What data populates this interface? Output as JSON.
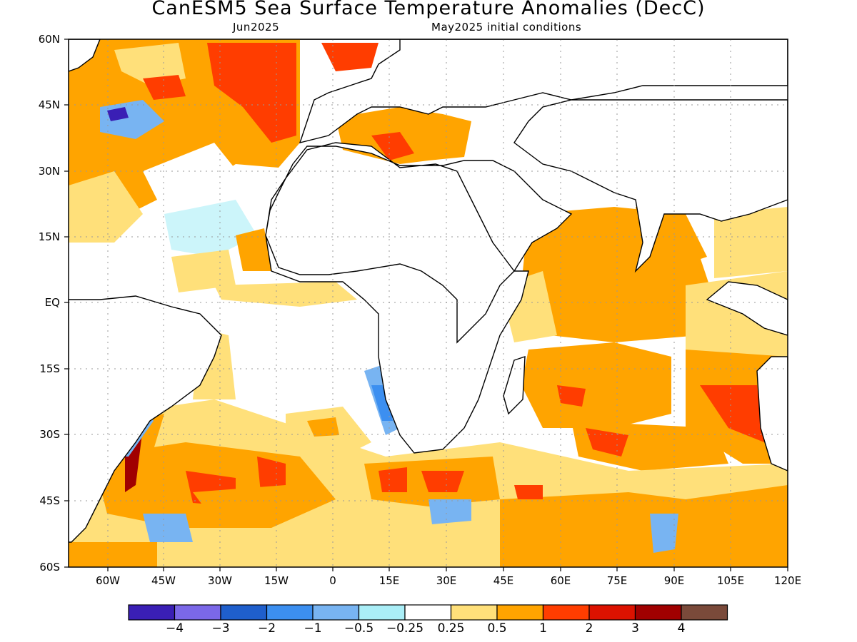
{
  "title": "CanESM5 Sea Surface Temperature Anomalies (DecC)",
  "subtitle_left": "Jun2025",
  "subtitle_right": "May2025 initial conditions",
  "lat_ticks": [
    "60N",
    "45N",
    "30N",
    "15N",
    "EQ",
    "15S",
    "30S",
    "45S",
    "60S"
  ],
  "lon_ticks": [
    "60W",
    "45W",
    "30W",
    "15W",
    "0",
    "15E",
    "30E",
    "45E",
    "60E",
    "75E",
    "90E",
    "105E",
    "120E"
  ],
  "colorbar": {
    "colors": [
      "#3a1fb5",
      "#7b68e8",
      "#1f5fcc",
      "#3c8ff0",
      "#78b4f2",
      "#aaeef7",
      "#ffffff",
      "#ffe07a",
      "#ffa400",
      "#ff3d00",
      "#dc1200",
      "#a00000",
      "#7a4a3a"
    ],
    "labels": [
      "−4",
      "−3",
      "−2",
      "−1",
      "−0.5",
      "−0.25",
      "0.25",
      "0.5",
      "1",
      "2",
      "3",
      "4"
    ]
  },
  "colors": {
    "land": "#ffffff",
    "ocean_neutral": "#ffffff",
    "grid": "#999999"
  }
}
